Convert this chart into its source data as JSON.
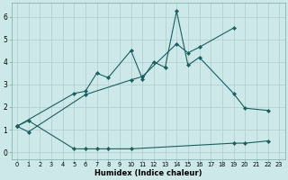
{
  "xlabel": "Humidex (Indice chaleur)",
  "bg_color": "#cde8e8",
  "grid_color": "#b0cccc",
  "line_color": "#1a5f5f",
  "xlim": [
    -0.5,
    23.5
  ],
  "ylim": [
    -0.3,
    6.6
  ],
  "xticks": [
    0,
    1,
    2,
    3,
    4,
    5,
    6,
    7,
    8,
    9,
    10,
    11,
    12,
    13,
    14,
    15,
    16,
    17,
    18,
    19,
    20,
    21,
    22,
    23
  ],
  "yticks": [
    0,
    1,
    2,
    3,
    4,
    5,
    6
  ],
  "series": [
    {
      "x": [
        0,
        1,
        5,
        6,
        7,
        8,
        10,
        19,
        20,
        22
      ],
      "y": [
        1.15,
        1.4,
        0.15,
        0.15,
        0.15,
        0.15,
        0.15,
        0.4,
        0.4,
        0.5
      ]
    },
    {
      "x": [
        0,
        5,
        6,
        7,
        8,
        10,
        11,
        12,
        13,
        14,
        15,
        16,
        19,
        20,
        22
      ],
      "y": [
        1.15,
        2.6,
        2.7,
        3.5,
        3.3,
        4.5,
        3.25,
        4.0,
        3.75,
        6.25,
        3.85,
        4.2,
        2.6,
        1.95,
        1.85
      ]
    },
    {
      "x": [
        0,
        1,
        6,
        10,
        11,
        14,
        15,
        16,
        19
      ],
      "y": [
        1.15,
        0.9,
        2.55,
        3.2,
        3.35,
        4.8,
        4.4,
        4.65,
        5.5
      ]
    }
  ]
}
